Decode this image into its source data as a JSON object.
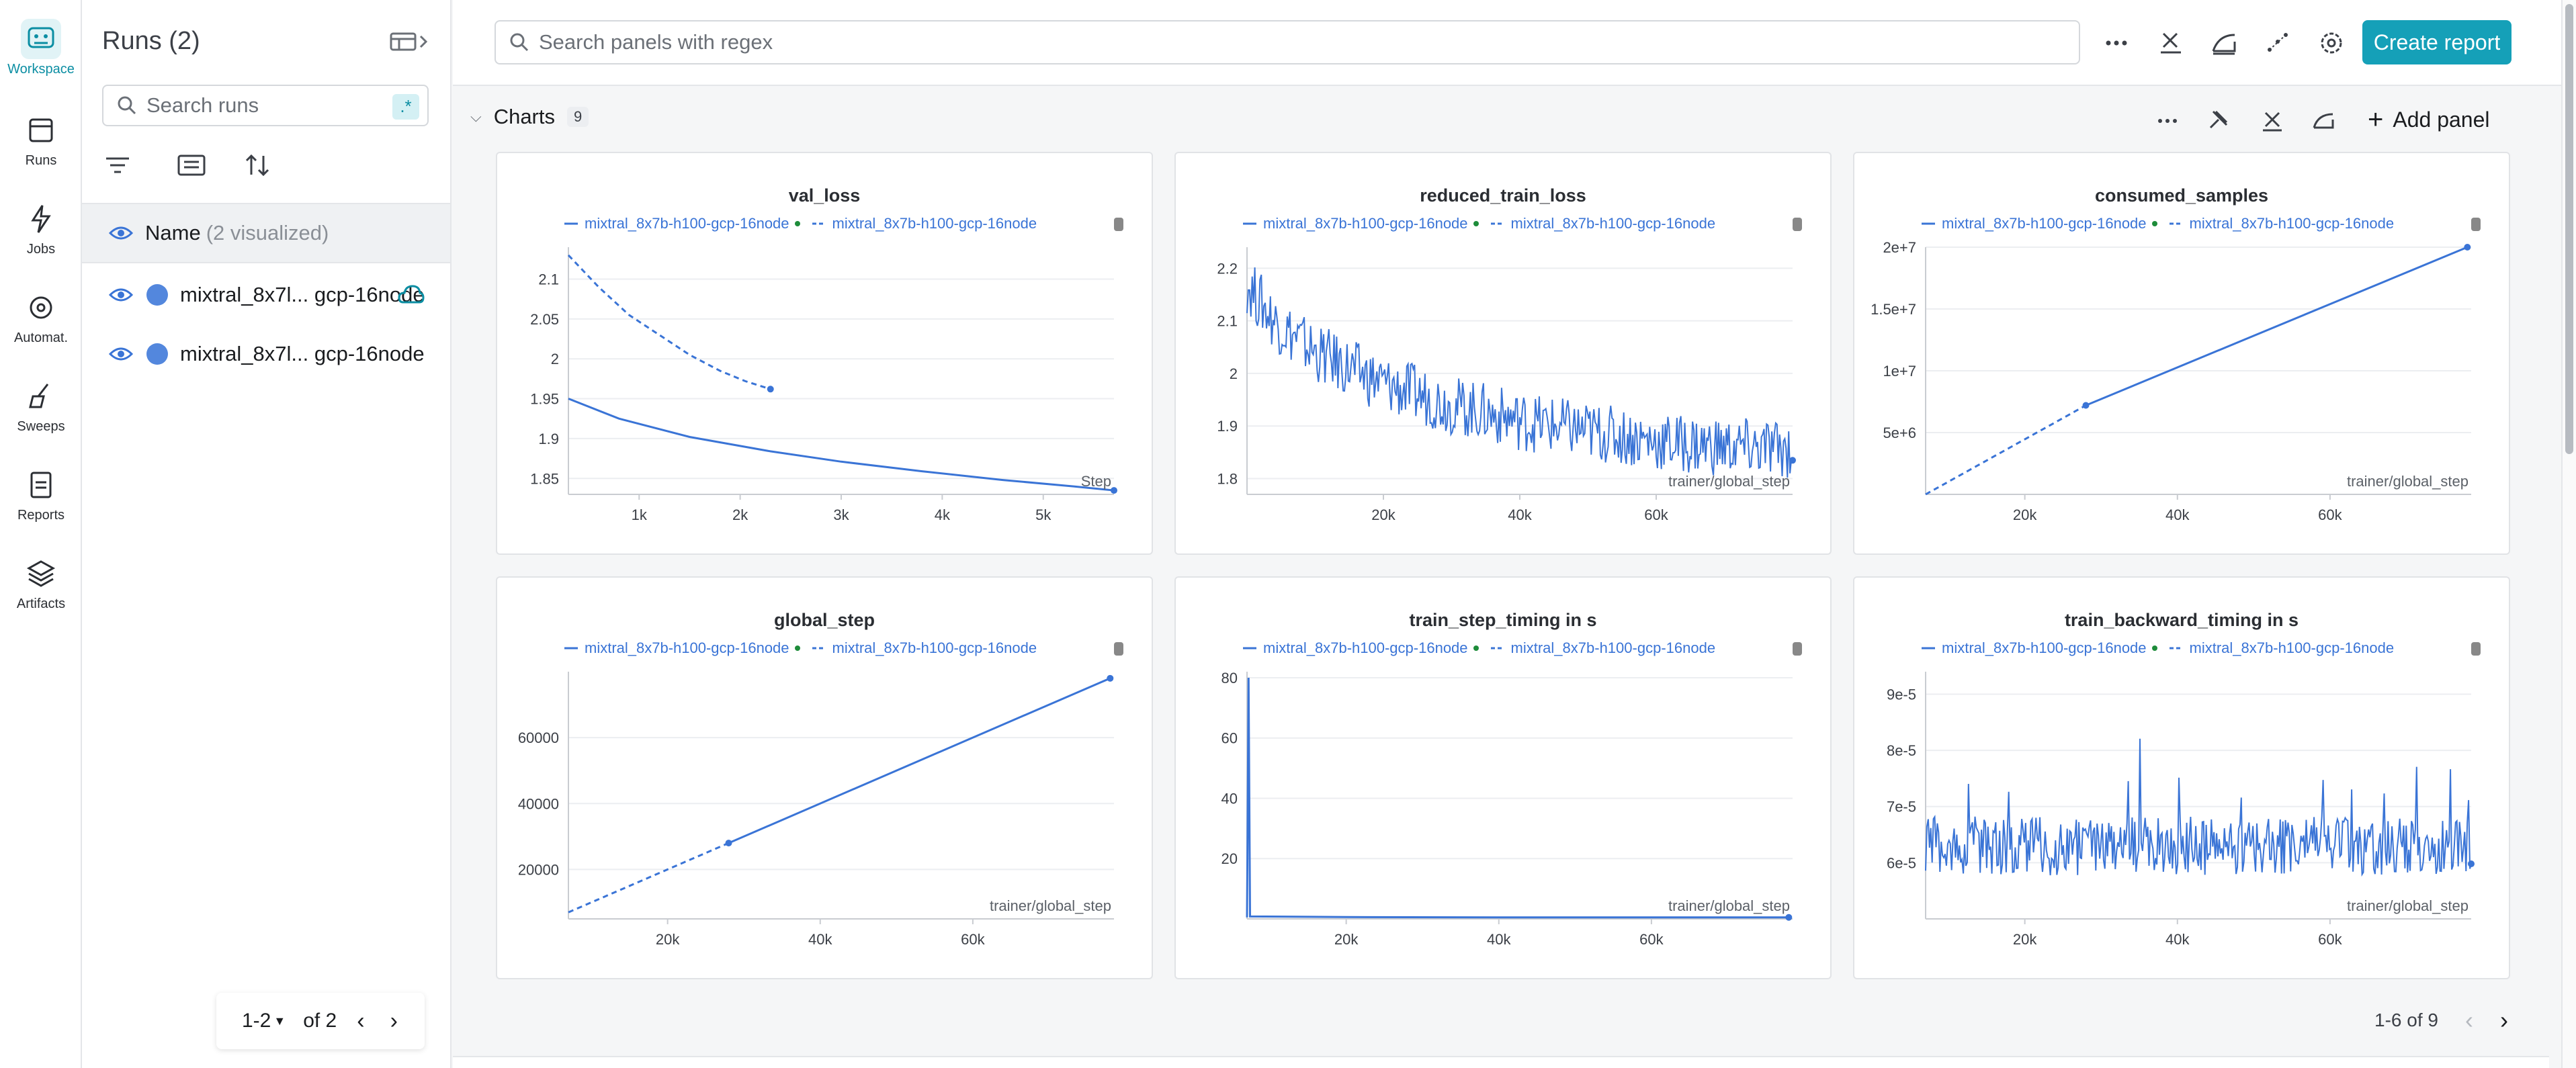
{
  "nav": {
    "items": [
      {
        "label": "Workspace",
        "icon": "workspace-icon",
        "active": true
      },
      {
        "label": "Runs",
        "icon": "runs-icon"
      },
      {
        "label": "Jobs",
        "icon": "jobs-icon"
      },
      {
        "label": "Automat.",
        "icon": "automations-icon"
      },
      {
        "label": "Sweeps",
        "icon": "sweeps-icon"
      },
      {
        "label": "Reports",
        "icon": "reports-icon"
      },
      {
        "label": "Artifacts",
        "icon": "artifacts-icon"
      }
    ]
  },
  "runs_panel": {
    "title": "Runs (2)",
    "search_placeholder": "Search runs",
    "regex_label": ".*",
    "name_header": "Name",
    "name_sub": "(2 visualized)",
    "runs": [
      {
        "name": "mixtral_8x7l... gcp-16node",
        "color": "#5387dd"
      },
      {
        "name": "mixtral_8x7l... gcp-16node",
        "color": "#5387dd"
      }
    ],
    "pager": {
      "range": "1-2",
      "of": "of 2"
    }
  },
  "top": {
    "search_placeholder": "Search panels with regex",
    "create_report": "Create report"
  },
  "section": {
    "title": "Charts",
    "count": "9",
    "add_panel": "Add panel"
  },
  "panel_pager": "1-6 of 9",
  "legend": {
    "series_a": "mixtral_8x7b-h100-gcp-16node",
    "series_b": "mixtral_8x7b-h100-gcp-16node"
  },
  "chart_data": [
    {
      "type": "line",
      "title": "val_loss",
      "xlabel": "Step",
      "xlim": [
        300,
        5700
      ],
      "ylim": [
        1.83,
        2.14
      ],
      "xticks": [
        1000,
        2000,
        3000,
        4000,
        5000
      ],
      "xtick_labels": [
        "1k",
        "2k",
        "3k",
        "4k",
        "5k"
      ],
      "yticks": [
        1.85,
        1.9,
        1.95,
        2,
        2.05,
        2.1
      ],
      "ytick_labels": [
        "1.85",
        "1.9",
        "1.95",
        "2",
        "2.05",
        "2.1"
      ],
      "series": [
        {
          "name": "mixtral_8x7b-h100-gcp-16node",
          "style": "solid",
          "x": [
            300,
            800,
            1500,
            2300,
            3000,
            3800,
            4600,
            5300,
            5700
          ],
          "y": [
            1.95,
            1.925,
            1.902,
            1.884,
            1.871,
            1.859,
            1.848,
            1.84,
            1.835
          ]
        },
        {
          "name": "mixtral_8x7b-h100-gcp-16node",
          "style": "dashed",
          "x": [
            300,
            600,
            900,
            1200,
            1500,
            1800,
            2050,
            2300
          ],
          "y": [
            2.13,
            2.09,
            2.055,
            2.03,
            2.005,
            1.985,
            1.972,
            1.962
          ]
        }
      ]
    },
    {
      "type": "line",
      "title": "reduced_train_loss",
      "xlabel": "trainer/global_step",
      "xlim": [
        0,
        80000
      ],
      "ylim": [
        1.77,
        2.24
      ],
      "xticks": [
        20000,
        40000,
        60000
      ],
      "xtick_labels": [
        "20k",
        "40k",
        "60k"
      ],
      "yticks": [
        1.8,
        1.9,
        2,
        2.1,
        2.2
      ],
      "ytick_labels": [
        "1.8",
        "1.9",
        "2",
        "2.1",
        "2.2"
      ],
      "series": [
        {
          "name": "mixtral_8x7b-h100-gcp-16node",
          "style": "solid",
          "x": [
            0,
            4000,
            10000,
            20000,
            30000,
            40000,
            50000,
            60000,
            70000,
            80000
          ],
          "y": [
            2.17,
            2.1,
            2.04,
            1.98,
            1.94,
            1.91,
            1.89,
            1.87,
            1.86,
            1.855
          ]
        }
      ]
    },
    {
      "type": "line",
      "title": "consumed_samples",
      "xlabel": "trainer/global_step",
      "xlim": [
        7000,
        78500
      ],
      "ylim": [
        0,
        20000000
      ],
      "xticks": [
        20000,
        40000,
        60000
      ],
      "xtick_labels": [
        "20k",
        "40k",
        "60k"
      ],
      "yticks": [
        5000000,
        10000000,
        15000000,
        20000000
      ],
      "ytick_labels": [
        "5e+6",
        "1e+7",
        "1.5e+7",
        "2e+7"
      ],
      "series": [
        {
          "name": "mixtral_8x7b-h100-gcp-16node",
          "style": "solid",
          "x": [
            28000,
            78000
          ],
          "y": [
            7200000,
            20000000
          ]
        },
        {
          "name": "mixtral_8x7b-h100-gcp-16node",
          "style": "dashed",
          "x": [
            7000,
            28000
          ],
          "y": [
            0,
            7200000
          ]
        }
      ]
    },
    {
      "type": "line",
      "title": "global_step",
      "xlabel": "trainer/global_step",
      "xlim": [
        7000,
        78500
      ],
      "ylim": [
        5000,
        80000
      ],
      "xticks": [
        20000,
        40000,
        60000
      ],
      "xtick_labels": [
        "20k",
        "40k",
        "60k"
      ],
      "yticks": [
        20000,
        40000,
        60000
      ],
      "ytick_labels": [
        "20000",
        "40000",
        "60000"
      ],
      "series": [
        {
          "name": "mixtral_8x7b-h100-gcp-16node",
          "style": "solid",
          "x": [
            28000,
            78000
          ],
          "y": [
            28000,
            78000
          ]
        },
        {
          "name": "mixtral_8x7b-h100-gcp-16node",
          "style": "dashed",
          "x": [
            7000,
            28000
          ],
          "y": [
            7000,
            28000
          ]
        }
      ]
    },
    {
      "type": "line",
      "title": "train_step_timing in s",
      "xlabel": "trainer/global_step",
      "xlim": [
        7000,
        78500
      ],
      "ylim": [
        0,
        82
      ],
      "xticks": [
        20000,
        40000,
        60000
      ],
      "xtick_labels": [
        "20k",
        "40k",
        "60k"
      ],
      "yticks": [
        20,
        40,
        60,
        80
      ],
      "ytick_labels": [
        "20",
        "40",
        "60",
        "80"
      ],
      "series": [
        {
          "name": "mixtral_8x7b-h100-gcp-16node",
          "style": "solid",
          "x": [
            7000,
            7200,
            7400,
            20000,
            40000,
            60000,
            78000
          ],
          "y": [
            0.5,
            80,
            0.8,
            0.6,
            0.5,
            0.5,
            0.5
          ]
        }
      ]
    },
    {
      "type": "line",
      "title": "train_backward_timing in s",
      "xlabel": "trainer/global_step",
      "xlim": [
        7000,
        78500
      ],
      "ylim": [
        5e-05,
        9.4e-05
      ],
      "xticks": [
        20000,
        40000,
        60000
      ],
      "xtick_labels": [
        "20k",
        "40k",
        "60k"
      ],
      "yticks": [
        6e-05,
        7e-05,
        8e-05,
        9e-05
      ],
      "ytick_labels": [
        "6e-5",
        "7e-5",
        "8e-5",
        "9e-5"
      ],
      "series": [
        {
          "name": "mixtral_8x7b-h100-gcp-16node",
          "style": "solid",
          "x": [
            7000,
            20000,
            40000,
            60000,
            78000
          ],
          "y": [
            6.3e-05,
            6.3e-05,
            6.3e-05,
            6.3e-05,
            6.3e-05
          ]
        }
      ]
    }
  ]
}
